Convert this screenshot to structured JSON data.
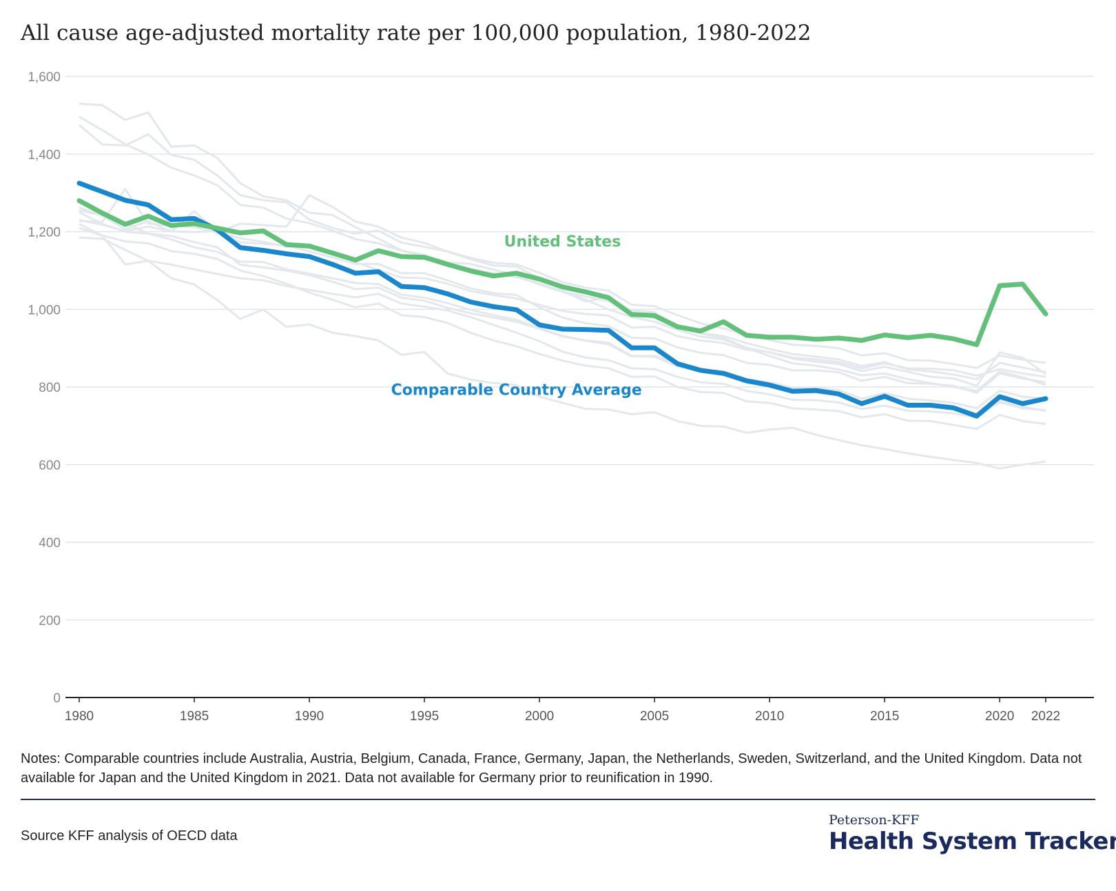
{
  "title": "All cause age-adjusted mortality rate per 100,000 population, 1980-2022",
  "notes": "Notes: Comparable countries include Australia, Austria, Belgium, Canada, France, Germany, Japan, the Netherlands, Sweden, Switzerland, and the United Kingdom. Data not available for Japan and the United Kingdom in 2021. Data not available for Germany prior to reunification in 1990.",
  "source": "Source KFF analysis of OECD data",
  "brand": {
    "top": "Peterson-KFF",
    "main": "Health System Tracker"
  },
  "colors": {
    "us": "#63c07a",
    "cca": "#1a87cc",
    "countries": "#e3e8ec",
    "grid": "#e1e5e8",
    "axis": "#222222",
    "ticks": "#888888"
  },
  "chart_data": {
    "type": "line",
    "title": "All cause age-adjusted mortality rate per 100,000 population, 1980-2022",
    "xlabel": "",
    "ylabel": "",
    "xlim": [
      1980,
      2022
    ],
    "ylim": [
      0,
      1600
    ],
    "x_ticks": [
      1980,
      1985,
      1990,
      1995,
      2000,
      2005,
      2010,
      2015,
      2020,
      2022
    ],
    "y_ticks": [
      0,
      200,
      400,
      600,
      800,
      1000,
      1200,
      1400,
      1600
    ],
    "y_tick_labels": [
      "0",
      "200",
      "400",
      "600",
      "800",
      "1,000",
      "1,200",
      "1,400",
      "1,600"
    ],
    "grid": true,
    "x": [
      1980,
      1981,
      1982,
      1983,
      1984,
      1985,
      1986,
      1987,
      1988,
      1989,
      1990,
      1991,
      1992,
      1993,
      1994,
      1995,
      1996,
      1997,
      1998,
      1999,
      2000,
      2001,
      2002,
      2003,
      2004,
      2005,
      2006,
      2007,
      2008,
      2009,
      2010,
      2011,
      2012,
      2013,
      2014,
      2015,
      2016,
      2017,
      2018,
      2019,
      2020,
      2021,
      2022
    ],
    "series": [
      {
        "name": "United States",
        "label_anchor": [
          2001,
          1162
        ],
        "values": [
          1280,
          1248,
          1219,
          1240,
          1216,
          1221,
          1209,
          1197,
          1202,
          1167,
          1163,
          1145,
          1127,
          1151,
          1136,
          1134,
          1116,
          1099,
          1086,
          1093,
          1078,
          1058,
          1045,
          1030,
          987,
          984,
          955,
          944,
          968,
          933,
          928,
          928,
          923,
          926,
          920,
          934,
          927,
          933,
          924,
          909,
          1061,
          1065,
          988
        ]
      },
      {
        "name": "Comparable Country Average",
        "label_anchor": [
          1999,
          780
        ],
        "values": [
          1325,
          1303,
          1281,
          1269,
          1231,
          1234,
          1205,
          1159,
          1152,
          1143,
          1136,
          1116,
          1093,
          1097,
          1059,
          1056,
          1040,
          1019,
          1007,
          999,
          960,
          949,
          948,
          946,
          901,
          901,
          860,
          843,
          835,
          816,
          805,
          789,
          791,
          782,
          757,
          776,
          753,
          753,
          746,
          725,
          775,
          757,
          770
        ]
      },
      {
        "name": "",
        "values": [
          1530,
          1526,
          1488,
          1507,
          1419,
          1422,
          1390,
          1325,
          1291,
          1281,
          1249,
          1243,
          1212,
          1182,
          1152,
          1140,
          1121,
          1117,
          1102,
          1088,
          1064,
          1045,
          1025,
          1000,
          980,
          968,
          947,
          930,
          922,
          900,
          880,
          861,
          855,
          845,
          830,
          835,
          820,
          810,
          800,
          790,
          840,
          825,
          805
        ]
      },
      {
        "name": "",
        "values": [
          1496,
          1462,
          1425,
          1399,
          1365,
          1345,
          1320,
          1269,
          1262,
          1234,
          1222,
          1203,
          1181,
          1170,
          1151,
          1138,
          1120,
          1105,
          1093,
          1083,
          1067,
          1046,
          1033,
          1021,
          990,
          978,
          955,
          939,
          931,
          913,
          898,
          885,
          878,
          871,
          854,
          864,
          845,
          840,
          832,
          820,
          862,
          850,
          838
        ]
      },
      {
        "name": "",
        "values": [
          1475,
          1425,
          1422,
          1451,
          1398,
          1385,
          1345,
          1294,
          1281,
          1276,
          1231,
          1210,
          1195,
          1203,
          1172,
          1161,
          1149,
          1133,
          1120,
          1116,
          1094,
          1070,
          1056,
          1048,
          1012,
          1008,
          985,
          964,
          951,
          934,
          921,
          909,
          906,
          900,
          881,
          887,
          869,
          868,
          859,
          849,
          881,
          870,
          862
        ]
      },
      {
        "name": "",
        "values": [
          1228,
          1225,
          1310,
          1221,
          1216,
          1212,
          1198,
          1221,
          1217,
          1213,
          1294,
          1264,
          1226,
          1213,
          1185,
          1171,
          1149,
          1129,
          1113,
          1110,
          1080,
          1049,
          1020,
          1031,
          997,
          993,
          954,
          938,
          926,
          901,
          889,
          873,
          865,
          859,
          841,
          852,
          839,
          826,
          822,
          803,
          889,
          875,
          833
        ]
      },
      {
        "name": "",
        "values": [
          1262,
          1241,
          1207,
          1227,
          1200,
          1253,
          1200,
          1183,
          1174,
          1161,
          1159,
          1146,
          1122,
          1101,
          1082,
          1080,
          1066,
          1047,
          1037,
          1028,
          1011,
          996,
          988,
          984,
          953,
          955,
          931,
          920,
          913,
          896,
          890,
          876,
          871,
          864,
          848,
          861,
          848,
          847,
          843,
          829,
          846,
          835,
          826
        ]
      },
      {
        "name": "",
        "values": [
          1230,
          1218,
          1202,
          1213,
          1201,
          1199,
          1202,
          1173,
          1169,
          1165,
          1149,
          1134,
          1117,
          1117,
          1093,
          1093,
          1075,
          1054,
          1042,
          1037,
          1005,
          979,
          964,
          957,
          927,
          925,
          902,
          888,
          882,
          862,
          857,
          843,
          843,
          838,
          816,
          826,
          810,
          808,
          803,
          785,
          835,
          822,
          812
        ]
      },
      {
        "name": "",
        "values": [
          1255,
          1242,
          1222,
          1195,
          1189,
          1173,
          1160,
          1115,
          1108,
          1100,
          1088,
          1071,
          1052,
          1056,
          1030,
          1022,
          1004,
          990,
          979,
          968,
          950,
          930,
          920,
          914,
          880,
          880,
          862,
          845,
          840,
          820,
          812,
          798,
          797,
          792,
          770,
          784,
          770,
          765,
          759,
          745,
          790,
          775,
          770
        ]
      },
      {
        "name": "",
        "values": [
          1185,
          1182,
          1153,
          1125,
          1115,
          1103,
          1091,
          1080,
          1075,
          1060,
          1050,
          1040,
          1031,
          1040,
          1015,
          1007,
          997,
          980,
          960,
          940,
          918,
          891,
          876,
          869,
          848,
          846,
          826,
          812,
          808,
          790,
          781,
          767,
          766,
          760,
          743,
          752,
          739,
          737,
          732,
          721,
          763,
          750,
          738
        ]
      },
      {
        "name": "",
        "values": [
          1210,
          1190,
          1175,
          1170,
          1150,
          1143,
          1130,
          1100,
          1086,
          1066,
          1043,
          1025,
          1005,
          1015,
          985,
          980,
          965,
          940,
          920,
          905,
          885,
          868,
          855,
          848,
          826,
          827,
          800,
          787,
          785,
          763,
          759,
          745,
          742,
          738,
          722,
          730,
          713,
          712,
          702,
          692,
          728,
          712,
          705
        ]
      },
      {
        "name": "",
        "values": [
          1220,
          1190,
          1116,
          1125,
          1080,
          1064,
          1024,
          975,
          1000,
          955,
          961,
          940,
          931,
          920,
          883,
          890,
          835,
          819,
          810,
          805,
          775,
          759,
          744,
          742,
          730,
          735,
          712,
          700,
          698,
          682,
          690,
          695,
          677,
          663,
          650,
          640,
          629,
          620,
          612,
          604,
          590,
          600,
          608
        ]
      },
      {
        "name": "",
        "values": [
          1250,
          1220,
          1200,
          1195,
          1180,
          1160,
          1148,
          1123,
          1122,
          1103,
          1092,
          1080,
          1068,
          1065,
          1038,
          1030,
          1016,
          999,
          985,
          973,
          952,
          932,
          919,
          910,
          879,
          878,
          853,
          840,
          832,
          811,
          801,
          786,
          785,
          779,
          759,
          770,
          756,
          752,
          745,
          729,
          760,
          745,
          740
        ]
      }
    ]
  }
}
